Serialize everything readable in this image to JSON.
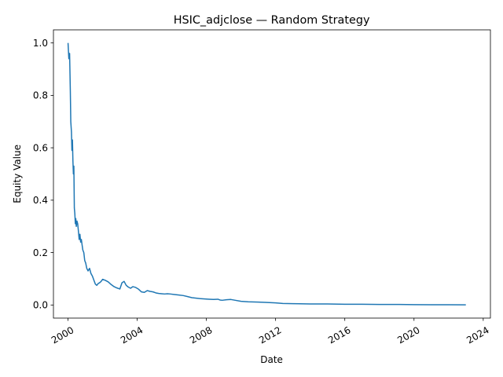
{
  "chart_data": {
    "type": "line",
    "title": "HSIC_adjclose — Random Strategy",
    "xlabel": "Date",
    "ylabel": "Equity Value",
    "xlim": [
      "1999-03-01",
      "2024-06-01"
    ],
    "ylim": [
      -0.05,
      1.05
    ],
    "x_ticks": [
      "2000",
      "2004",
      "2008",
      "2012",
      "2016",
      "2020",
      "2024"
    ],
    "y_ticks": [
      "0.0",
      "0.2",
      "0.4",
      "0.6",
      "0.8",
      "1.0"
    ],
    "grid": false,
    "legend": "none",
    "line_color": "#1f77b4",
    "series": [
      {
        "x": [
          "2000-01-03",
          "2000-01-20",
          "2000-02-05",
          "2000-02-20",
          "2000-03-01",
          "2000-03-15",
          "2000-03-25",
          "2000-04-05",
          "2000-04-15",
          "2000-04-25",
          "2000-05-05",
          "2000-05-15",
          "2000-05-25",
          "2000-06-05",
          "2000-06-15",
          "2000-06-25",
          "2000-07-10",
          "2000-07-25",
          "2000-08-10",
          "2000-08-25",
          "2000-09-10",
          "2000-09-25",
          "2000-10-10",
          "2000-10-25",
          "2000-11-10",
          "2000-12-01",
          "2000-12-20",
          "2001-01-10",
          "2001-02-01",
          "2001-03-01",
          "2001-04-01",
          "2001-05-01",
          "2001-06-01",
          "2001-07-01",
          "2001-08-01",
          "2001-09-01",
          "2001-10-01",
          "2001-11-01",
          "2001-12-01",
          "2002-01-01",
          "2002-03-01",
          "2002-05-01",
          "2002-07-01",
          "2002-09-01",
          "2002-11-01",
          "2003-01-01",
          "2003-02-15",
          "2003-04-01",
          "2003-05-15",
          "2003-07-01",
          "2003-08-15",
          "2003-10-01",
          "2003-12-01",
          "2004-02-01",
          "2004-04-01",
          "2004-06-01",
          "2004-08-01",
          "2004-10-01",
          "2004-12-01",
          "2005-02-01",
          "2005-04-01",
          "2005-06-01",
          "2005-08-01",
          "2005-10-01",
          "2005-12-01",
          "2006-03-01",
          "2006-06-01",
          "2006-09-01",
          "2006-12-01",
          "2007-03-01",
          "2007-06-01",
          "2007-09-01",
          "2007-12-01",
          "2008-03-01",
          "2008-06-01",
          "2008-09-01",
          "2008-10-15",
          "2008-12-01",
          "2009-03-01",
          "2009-06-01",
          "2009-09-01",
          "2010-01-01",
          "2010-06-01",
          "2011-01-01",
          "2011-06-01",
          "2012-01-01",
          "2012-06-01",
          "2013-01-01",
          "2014-01-01",
          "2015-01-01",
          "2016-01-01",
          "2017-01-01",
          "2018-01-01",
          "2019-01-01",
          "2020-01-01",
          "2021-01-01",
          "2022-01-01",
          "2022-12-30"
        ],
        "values": [
          1.0,
          0.94,
          0.96,
          0.82,
          0.7,
          0.66,
          0.59,
          0.63,
          0.55,
          0.5,
          0.53,
          0.37,
          0.35,
          0.31,
          0.33,
          0.3,
          0.32,
          0.31,
          0.28,
          0.25,
          0.27,
          0.24,
          0.25,
          0.23,
          0.21,
          0.2,
          0.17,
          0.16,
          0.14,
          0.13,
          0.14,
          0.12,
          0.11,
          0.095,
          0.08,
          0.075,
          0.082,
          0.085,
          0.09,
          0.098,
          0.094,
          0.088,
          0.078,
          0.07,
          0.065,
          0.061,
          0.085,
          0.09,
          0.075,
          0.068,
          0.064,
          0.07,
          0.067,
          0.06,
          0.05,
          0.048,
          0.055,
          0.052,
          0.05,
          0.046,
          0.044,
          0.043,
          0.042,
          0.043,
          0.042,
          0.04,
          0.038,
          0.036,
          0.032,
          0.028,
          0.026,
          0.024,
          0.023,
          0.022,
          0.021,
          0.022,
          0.019,
          0.018,
          0.02,
          0.021,
          0.018,
          0.014,
          0.012,
          0.011,
          0.01,
          0.008,
          0.006,
          0.005,
          0.004,
          0.004,
          0.003,
          0.003,
          0.002,
          0.002,
          0.0015,
          0.001,
          0.0008,
          0.0006
        ]
      }
    ]
  }
}
